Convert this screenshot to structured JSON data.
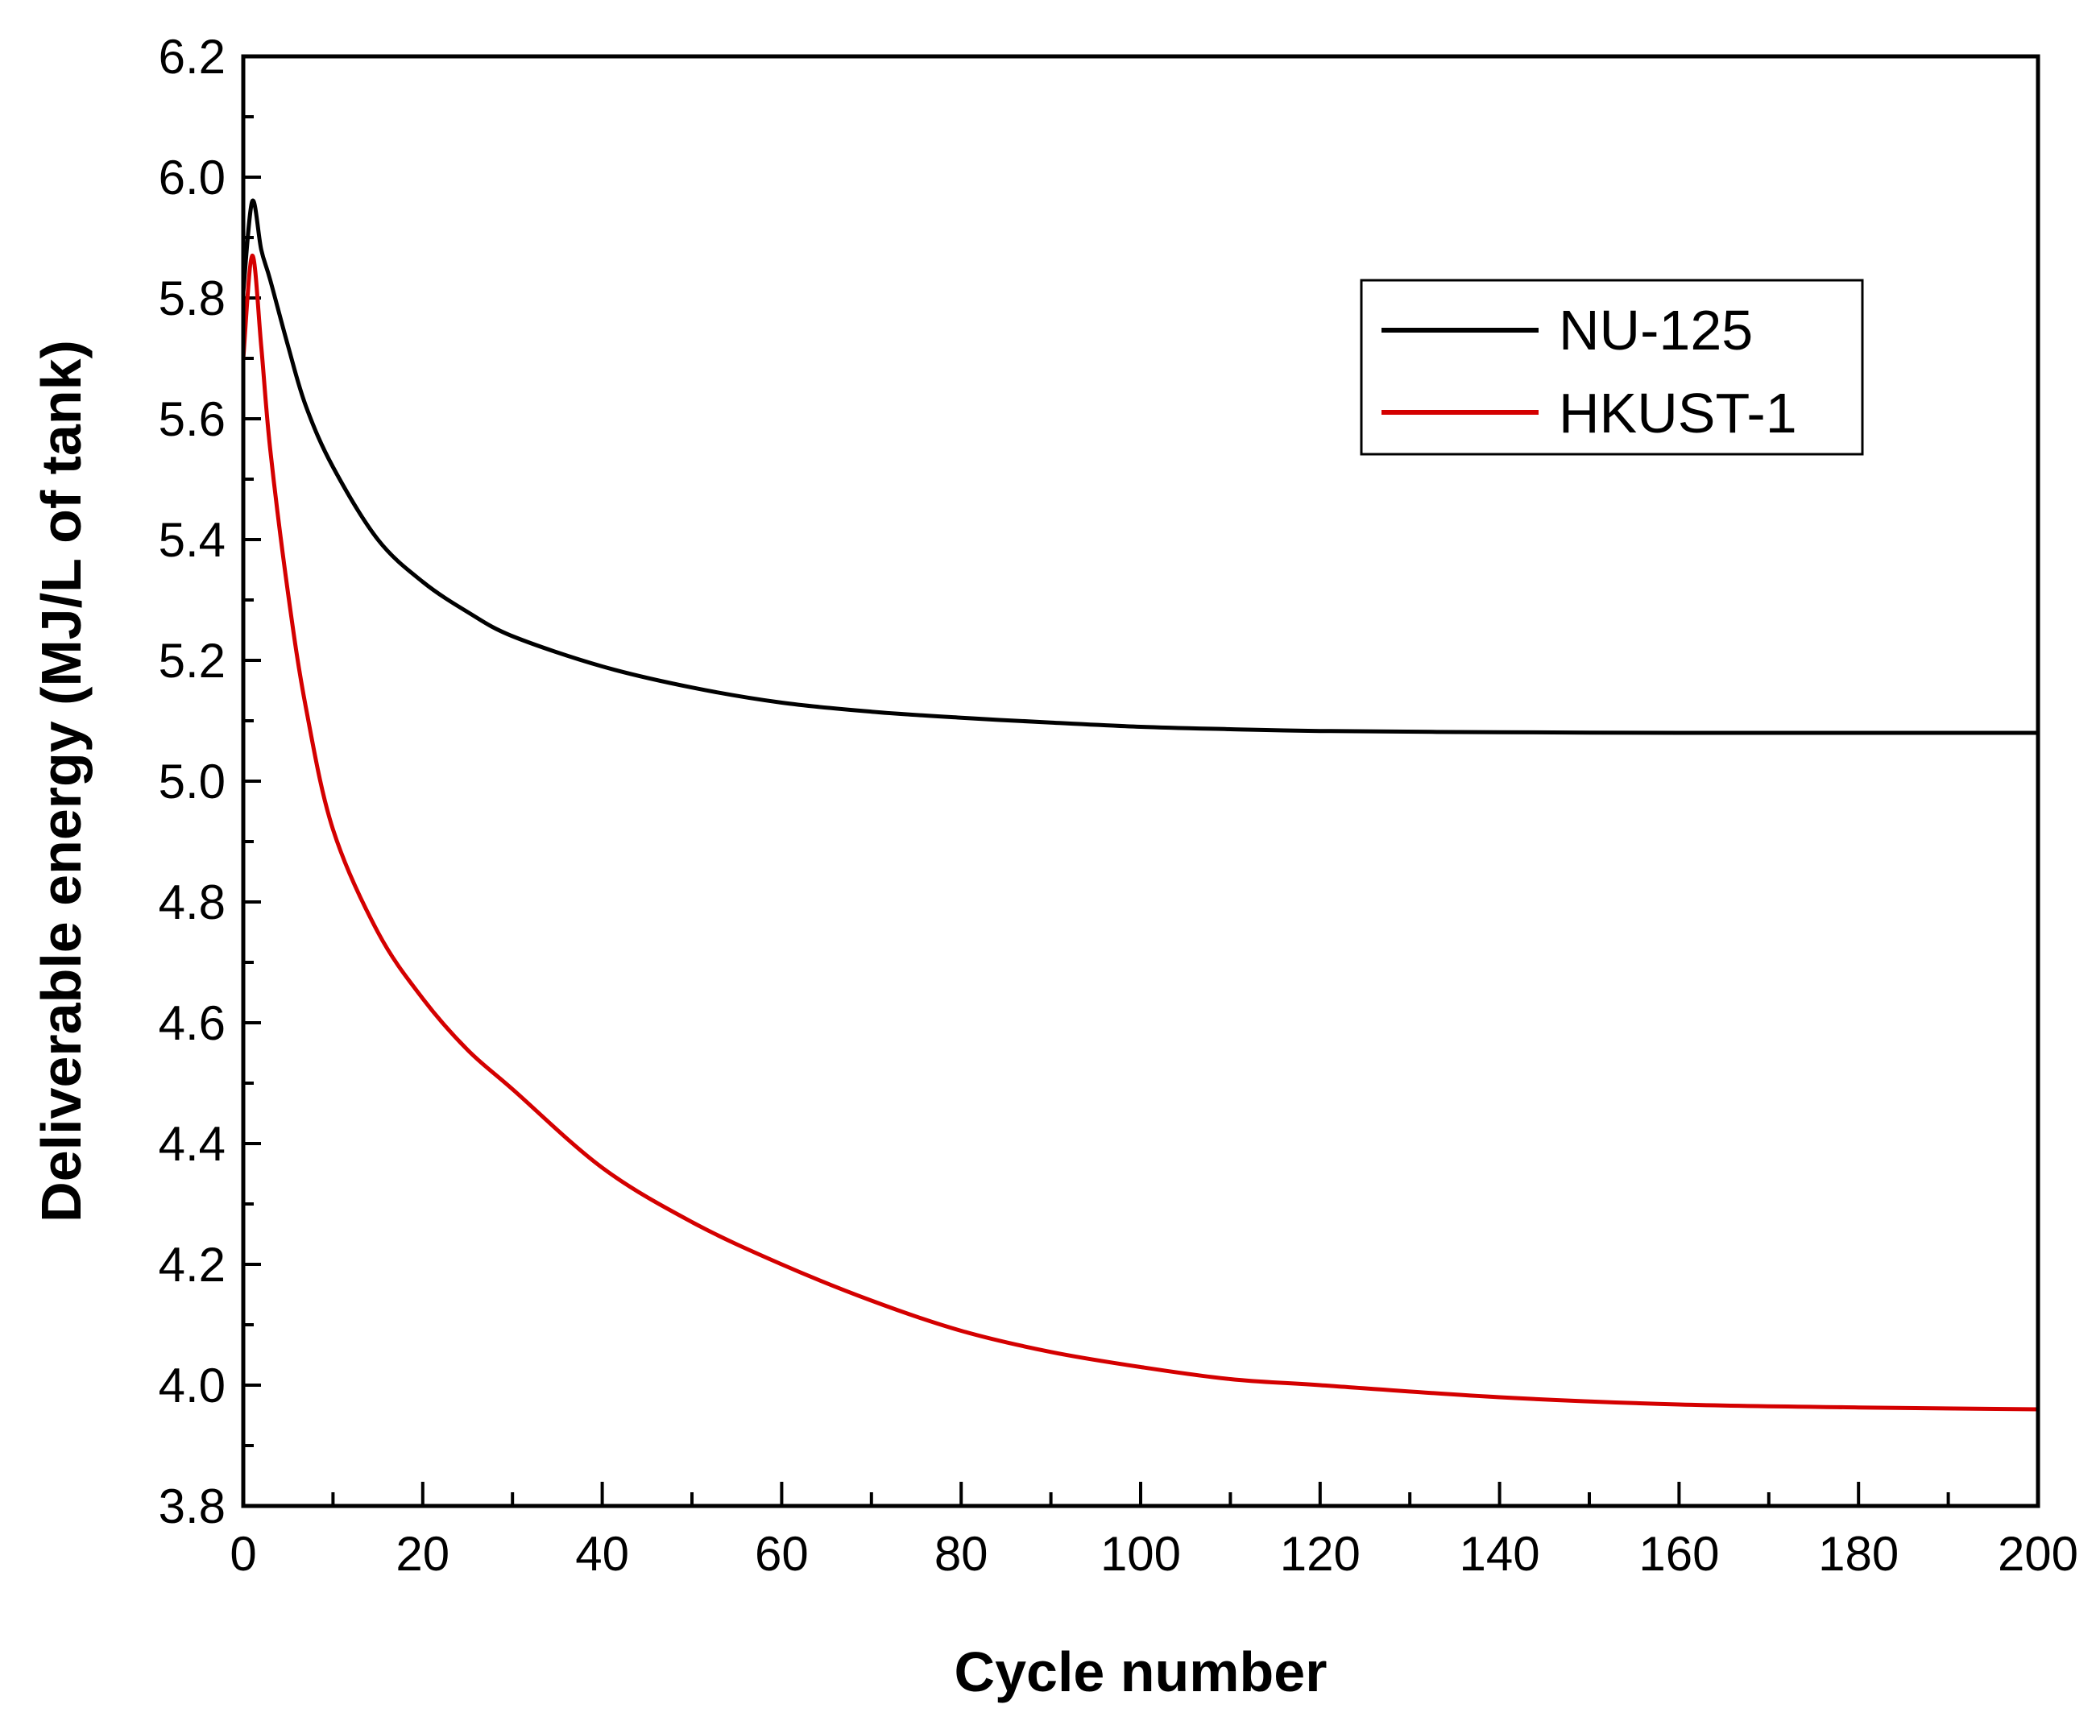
{
  "chart_data": {
    "type": "line",
    "title": "",
    "xlabel": "Cycle number",
    "ylabel": "Deliverable energy (MJ/L of tank)",
    "xlim": [
      0,
      200
    ],
    "ylim": [
      3.8,
      6.2
    ],
    "x_major_ticks": [
      0,
      20,
      40,
      60,
      80,
      100,
      120,
      140,
      160,
      180,
      200
    ],
    "x_tick_labels": [
      "0",
      "20",
      "40",
      "60",
      "80",
      "100",
      "120",
      "140",
      "160",
      "180",
      "200"
    ],
    "x_minor_ticks": [
      10,
      30,
      50,
      70,
      90,
      110,
      130,
      150,
      170,
      190
    ],
    "y_major_ticks": [
      3.8,
      4.0,
      4.2,
      4.4,
      4.6,
      4.8,
      5.0,
      5.2,
      5.4,
      5.6,
      5.8,
      6.0,
      6.2
    ],
    "y_tick_labels": [
      "3.8",
      "4.0",
      "4.2",
      "4.4",
      "4.6",
      "4.8",
      "5.0",
      "5.2",
      "5.4",
      "5.6",
      "5.8",
      "6.0",
      "6.2"
    ],
    "y_minor_ticks": [
      3.9,
      4.1,
      4.3,
      4.5,
      4.7,
      4.9,
      5.1,
      5.3,
      5.5,
      5.7,
      5.9,
      6.1
    ],
    "grid": false,
    "legend_position": "top-right",
    "series": [
      {
        "name": "NU-125",
        "color": "#000000",
        "x": [
          0,
          1,
          2,
          3,
          5,
          7,
          10,
          15,
          20,
          25,
          30,
          40,
          50,
          60,
          70,
          80,
          90,
          100,
          110,
          120,
          140,
          160,
          180,
          200
        ],
        "y": [
          5.81,
          5.96,
          5.88,
          5.83,
          5.72,
          5.62,
          5.52,
          5.4,
          5.33,
          5.28,
          5.24,
          5.19,
          5.155,
          5.13,
          5.115,
          5.105,
          5.097,
          5.09,
          5.086,
          5.083,
          5.081,
          5.08,
          5.08,
          5.08
        ]
      },
      {
        "name": "HKUST-1",
        "color": "#d40000",
        "x": [
          0,
          1,
          2,
          3,
          5,
          7,
          10,
          15,
          20,
          25,
          30,
          40,
          50,
          60,
          70,
          80,
          90,
          100,
          110,
          120,
          140,
          160,
          180,
          200
        ],
        "y": [
          5.7,
          5.87,
          5.72,
          5.55,
          5.31,
          5.12,
          4.92,
          4.75,
          4.64,
          4.555,
          4.49,
          4.36,
          4.27,
          4.2,
          4.14,
          4.09,
          4.055,
          4.03,
          4.01,
          4.0,
          3.98,
          3.968,
          3.963,
          3.96
        ]
      }
    ]
  }
}
